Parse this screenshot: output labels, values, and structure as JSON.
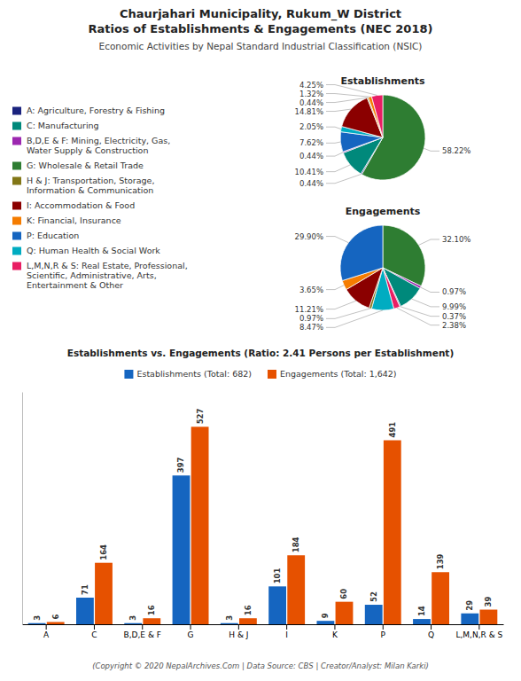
{
  "title": [
    "Chaurjahari Municipality, Rukum_W District",
    "Ratios of Establishments & Engagements (NEC 2018)"
  ],
  "subtitle": "Economic Activities by Nepal Standard Industrial Classification (NSIC)",
  "annotations": [
    "(Copyright © 2020 NepalArchives.Com | Data Source: CBS | Creator/Analyst: Milan Karki)"
  ],
  "chart_data": [
    {
      "type": "legend",
      "categories": [
        "A: Agriculture, Forestry & Fishing",
        "C: Manufacturing",
        "B,D,E & F: Mining, Electricity, Gas,\nWater Supply & Construction",
        "G: Wholesale & Retail Trade",
        "H & J: Transportation, Storage,\nInformation & Communication",
        "I: Accommodation & Food",
        "K: Financial, Insurance",
        "P: Education",
        "Q: Human Health & Social Work",
        "L,M,N,R & S: Real Estate, Professional,\nScientific, Administrative, Arts,\nEntertainment & Other"
      ],
      "colors": [
        "#1a237e",
        "#00897b",
        "#9c27b0",
        "#2e7d32",
        "#827717",
        "#8b0000",
        "#f57c00",
        "#1565c0",
        "#00acc1",
        "#e91e63"
      ]
    },
    {
      "type": "pie",
      "title": "Establishments",
      "values": [
        58.22,
        0.44,
        10.41,
        0.44,
        7.62,
        2.05,
        14.81,
        0.44,
        1.32,
        4.25
      ],
      "value_labels": [
        "58.22%",
        "0.44%",
        "10.41%",
        "0.44%",
        "7.62%",
        "2.05%",
        "14.81%",
        "0.44%",
        "1.32%",
        "4.25%"
      ],
      "colors": [
        "#2e7d32",
        "#1a237e",
        "#00897b",
        "#9c27b0",
        "#1565c0",
        "#00acc1",
        "#8b0000",
        "#827717",
        "#f57c00",
        "#e91e63"
      ],
      "data_labels": true
    },
    {
      "type": "pie",
      "title": "Engagements",
      "values": [
        32.1,
        0.97,
        9.99,
        0.37,
        2.38,
        8.47,
        0.97,
        11.21,
        3.65,
        29.9
      ],
      "value_labels": [
        "32.10%",
        "0.97%",
        "9.99%",
        "0.37%",
        "2.38%",
        "8.47%",
        "0.97%",
        "11.21%",
        "3.65%",
        "29.90%"
      ],
      "colors": [
        "#2e7d32",
        "#9c27b0",
        "#00897b",
        "#1a237e",
        "#e91e63",
        "#00acc1",
        "#827717",
        "#8b0000",
        "#f57c00",
        "#1565c0"
      ],
      "data_labels": true
    },
    {
      "type": "bar",
      "title": "Establishments vs. Engagements (Ratio: 2.41 Persons per Establishment)",
      "categories": [
        "A",
        "C",
        "B,D,E & F",
        "G",
        "H & J",
        "I",
        "K",
        "P",
        "Q",
        "L,M,N,R & S"
      ],
      "series": [
        {
          "name": "Establishments (Total: 682)",
          "color": "#1565c0",
          "values": [
            3,
            71,
            3,
            397,
            3,
            101,
            9,
            52,
            14,
            29
          ]
        },
        {
          "name": "Engagements (Total: 1,642)",
          "color": "#e65100",
          "values": [
            6,
            164,
            16,
            527,
            16,
            184,
            60,
            491,
            139,
            39
          ]
        }
      ],
      "ylim": [
        0,
        620
      ],
      "data_labels": true,
      "tick_labels": "x",
      "legend": "top",
      "grid": false
    }
  ]
}
